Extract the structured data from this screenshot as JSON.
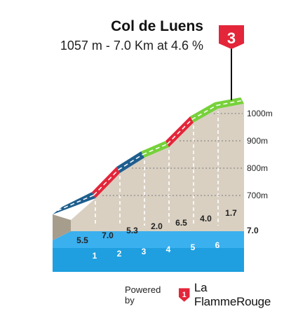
{
  "header": {
    "title": "Col de Luens",
    "subtitle": "1057 m - 7.0 Km at 4.6 %"
  },
  "category_badge": "3",
  "chart_data": {
    "type": "elevation-profile",
    "total_distance_label": "7.0",
    "altitude_ticks": [
      "1000m",
      "900m",
      "800m",
      "700m"
    ],
    "km_markers": [
      "1",
      "2",
      "3",
      "4",
      "5",
      "6"
    ],
    "segments": [
      {
        "km": 1,
        "gradient": 5.5,
        "color": "#1e5f8e"
      },
      {
        "km": 2,
        "gradient": 7.0,
        "color": "#e3263a"
      },
      {
        "km": 3,
        "gradient": 5.3,
        "color": "#1e5f8e"
      },
      {
        "km": 4,
        "gradient": 2.0,
        "color": "#77d13b"
      },
      {
        "km": 5,
        "gradient": 6.5,
        "color": "#e3263a"
      },
      {
        "km": 6,
        "gradient": 4.0,
        "color": "#77d13b"
      },
      {
        "km": 7,
        "gradient": 1.7,
        "color": "#77d13b"
      }
    ]
  },
  "footer": {
    "powered_by": "Powered by",
    "brand": "La FlammeRouge"
  }
}
